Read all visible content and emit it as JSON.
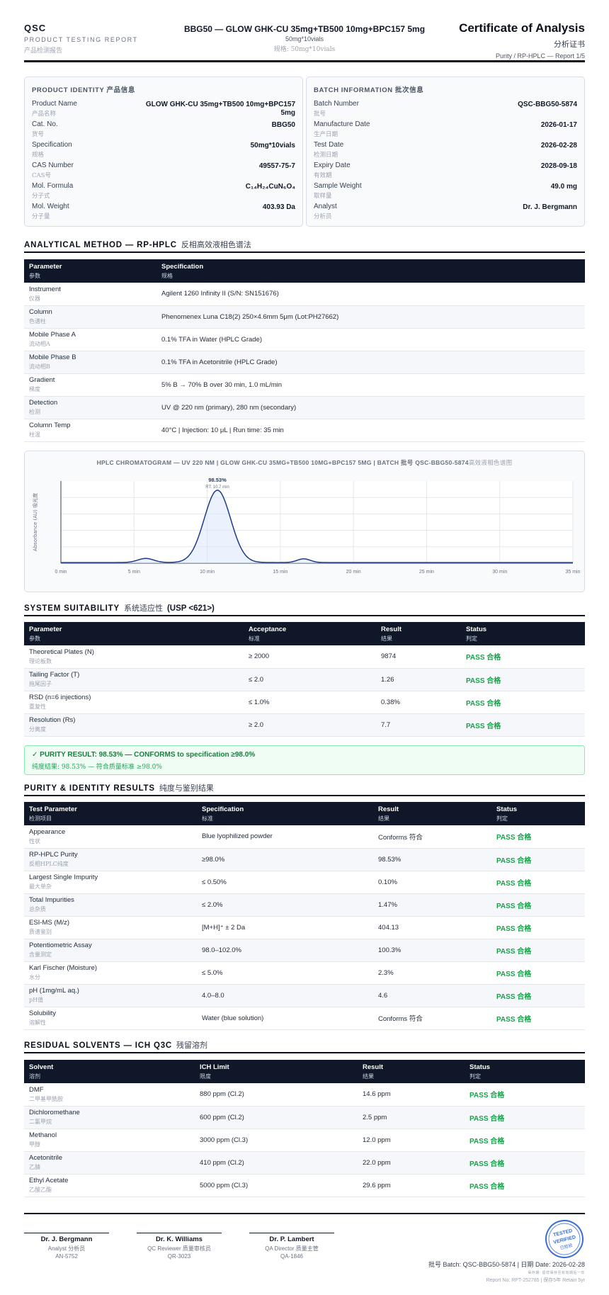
{
  "header": {
    "brand": "QSC",
    "brand_sub": "PRODUCT TESTING REPORT",
    "brand_sub_cn": "产品检测报告",
    "title": "BBG50 — GLOW GHK-CU 35mg+TB500 10mg+BPC157 5mg",
    "spec": "50mg*10vials",
    "spec_cn": "规格: 50mg*10vials",
    "coa": "Certificate of Analysis",
    "coa_cn": "分析证书",
    "coa_sub": "Purity / RP-HPLC — Report 1/5"
  },
  "product_identity": {
    "heading": "PRODUCT IDENTITY 产品信息",
    "items": [
      {
        "label": "Product Name",
        "label_cn": "产品名称",
        "value": "GLOW GHK-CU 35mg+TB500 10mg+BPC157 5mg"
      },
      {
        "label": "Cat. No.",
        "label_cn": "货号",
        "value": "BBG50"
      },
      {
        "label": "Specification",
        "label_cn": "规格",
        "value": "50mg*10vials"
      },
      {
        "label": "CAS Number",
        "label_cn": "CAS号",
        "value": "49557-75-7"
      },
      {
        "label": "Mol. Formula",
        "label_cn": "分子式",
        "value": "C₁₄H₂₄CuN₆O₄"
      },
      {
        "label": "Mol. Weight",
        "label_cn": "分子量",
        "value": "403.93 Da"
      }
    ]
  },
  "batch_info": {
    "heading": "BATCH INFORMATION 批次信息",
    "items": [
      {
        "label": "Batch Number",
        "label_cn": "批号",
        "value": "QSC-BBG50-5874"
      },
      {
        "label": "Manufacture Date",
        "label_cn": "生产日期",
        "value": "2026-01-17"
      },
      {
        "label": "Test Date",
        "label_cn": "检测日期",
        "value": "2026-02-28"
      },
      {
        "label": "Expiry Date",
        "label_cn": "有效期",
        "value": "2028-09-18"
      },
      {
        "label": "Sample Weight",
        "label_cn": "取样量",
        "value": "49.0 mg"
      },
      {
        "label": "Analyst",
        "label_cn": "分析员",
        "value": "Dr. J. Bergmann"
      }
    ]
  },
  "method": {
    "title": "ANALYTICAL METHOD — RP-HPLC",
    "title_cn": "反相高效液相色谱法",
    "headers": [
      {
        "en": "Parameter",
        "cn": "参数"
      },
      {
        "en": "Specification",
        "cn": "规格"
      }
    ],
    "rows": [
      {
        "param": "Instrument",
        "param_cn": "仪器",
        "spec": "Agilent 1260 Infinity II (S/N: SN151676)"
      },
      {
        "param": "Column",
        "param_cn": "色谱柱",
        "spec": "Phenomenex Luna C18(2) 250×4.6mm 5μm (Lot:PH27662)"
      },
      {
        "param": "Mobile Phase A",
        "param_cn": "流动相A",
        "spec": "0.1% TFA in Water (HPLC Grade)"
      },
      {
        "param": "Mobile Phase B",
        "param_cn": "流动相B",
        "spec": "0.1% TFA in Acetonitrile (HPLC Grade)"
      },
      {
        "param": "Gradient",
        "param_cn": "梯度",
        "spec": "5% B → 70% B over 30 min, 1.0 mL/min"
      },
      {
        "param": "Detection",
        "param_cn": "检测",
        "spec": "UV @ 220 nm (primary), 280 nm (secondary)"
      },
      {
        "param": "Column Temp",
        "param_cn": "柱温",
        "spec": "40°C | Injection: 10 μL | Run time: 35 min"
      }
    ]
  },
  "chart_data": {
    "type": "line",
    "title": "HPLC CHROMATOGRAM — UV 220 NM | GLOW GHK-CU 35MG+TB500 10MG+BPC157 5MG | BATCH 批号 QSC-BBG50-5874",
    "title_cn": "高效液相色谱图",
    "ylabel": "Absorbance (AU) 吸光度",
    "xlabel": "",
    "x_ticks": [
      "0 min",
      "5 min",
      "10 min",
      "15 min",
      "20 min",
      "25 min",
      "30 min",
      "35 min"
    ],
    "xlim": [
      0,
      35
    ],
    "ylim": [
      0,
      1
    ],
    "grid": true,
    "peaks": [
      {
        "rt": 5.8,
        "height": 0.05,
        "width": 0.55
      },
      {
        "rt": 10.7,
        "height": 0.88,
        "width": 0.9
      },
      {
        "rt": 16.6,
        "height": 0.045,
        "width": 0.45
      }
    ],
    "annotation": {
      "label": "98.53%",
      "sublabel": "RT: 10.7 min",
      "x": 10.7
    }
  },
  "suitability": {
    "title": "SYSTEM SUITABILITY",
    "title_cn": "系统适应性",
    "title_usp": "(USP <621>)",
    "headers": [
      {
        "en": "Parameter",
        "cn": "参数"
      },
      {
        "en": "Acceptance",
        "cn": "标准"
      },
      {
        "en": "Result",
        "cn": "结果"
      },
      {
        "en": "Status",
        "cn": "判定"
      }
    ],
    "rows": [
      {
        "param": "Theoretical Plates (N)",
        "param_cn": "理论板数",
        "accept": "≥ 2000",
        "result": "9874",
        "status": "PASS 合格"
      },
      {
        "param": "Tailing Factor (T)",
        "param_cn": "拖尾因子",
        "accept": "≤ 2.0",
        "result": "1.26",
        "status": "PASS 合格"
      },
      {
        "param": "RSD (n=6 injections)",
        "param_cn": "重复性",
        "accept": "≤ 1.0%",
        "result": "0.38%",
        "status": "PASS 合格"
      },
      {
        "param": "Resolution (Rs)",
        "param_cn": "分离度",
        "accept": "≥ 2.0",
        "result": "7.7",
        "status": "PASS 合格"
      }
    ]
  },
  "banner": {
    "main": "✓ PURITY RESULT: 98.53% — CONFORMS to specification ≥98.0%",
    "cn": "纯度结果: 98.53% — 符合质量标准 ≥98.0%"
  },
  "purity": {
    "title": "PURITY & IDENTITY RESULTS",
    "title_cn": "纯度与鉴别结果",
    "headers": [
      {
        "en": "Test Parameter",
        "cn": "检测项目"
      },
      {
        "en": "Specification",
        "cn": "标准"
      },
      {
        "en": "Result",
        "cn": "结果"
      },
      {
        "en": "Status",
        "cn": "判定"
      }
    ],
    "rows": [
      {
        "param": "Appearance",
        "param_cn": "性状",
        "spec": "Blue lyophilized powder",
        "result": "Conforms 符合",
        "status": "PASS 合格"
      },
      {
        "param": "RP-HPLC Purity",
        "param_cn": "反相HPLC纯度",
        "spec": "≥98.0%",
        "result": "98.53%",
        "status": "PASS 合格"
      },
      {
        "param": "Largest Single Impurity",
        "param_cn": "最大单杂",
        "spec": "≤ 0.50%",
        "result": "0.10%",
        "status": "PASS 合格"
      },
      {
        "param": "Total Impurities",
        "param_cn": "总杂质",
        "spec": "≤ 2.0%",
        "result": "1.47%",
        "status": "PASS 合格"
      },
      {
        "param": "ESI-MS (M/z)",
        "param_cn": "质谱鉴别",
        "spec": "[M+H]⁺ ± 2 Da",
        "result": "404.13",
        "status": "PASS 合格"
      },
      {
        "param": "Potentiometric Assay",
        "param_cn": "含量测定",
        "spec": "98.0–102.0%",
        "result": "100.3%",
        "status": "PASS 合格"
      },
      {
        "param": "Karl Fischer (Moisture)",
        "param_cn": "水分",
        "spec": "≤ 5.0%",
        "result": "2.3%",
        "status": "PASS 合格"
      },
      {
        "param": "pH (1mg/mL aq.)",
        "param_cn": "pH值",
        "spec": "4.0–8.0",
        "result": "4.6",
        "status": "PASS 合格"
      },
      {
        "param": "Solubility",
        "param_cn": "溶解性",
        "spec": "Water (blue solution)",
        "result": "Conforms 符合",
        "status": "PASS 合格"
      }
    ]
  },
  "solvents": {
    "title": "RESIDUAL SOLVENTS — ICH Q3C",
    "title_cn": "残留溶剂",
    "headers": [
      {
        "en": "Solvent",
        "cn": "溶剂"
      },
      {
        "en": "ICH Limit",
        "cn": "限度"
      },
      {
        "en": "Result",
        "cn": "结果"
      },
      {
        "en": "Status",
        "cn": "判定"
      }
    ],
    "rows": [
      {
        "name": "DMF",
        "name_cn": "二甲基甲酰胺",
        "limit": "880 ppm (Cl.2)",
        "result": "14.6 ppm",
        "status": "PASS 合格"
      },
      {
        "name": "Dichloromethane",
        "name_cn": "二氯甲烷",
        "limit": "600 ppm (Cl.2)",
        "result": "2.5 ppm",
        "status": "PASS 合格"
      },
      {
        "name": "Methanol",
        "name_cn": "甲醇",
        "limit": "3000 ppm (Cl.3)",
        "result": "12.0 ppm",
        "status": "PASS 合格"
      },
      {
        "name": "Acetonitrile",
        "name_cn": "乙腈",
        "limit": "410 ppm (Cl.2)",
        "result": "22.0 ppm",
        "status": "PASS 合格"
      },
      {
        "name": "Ethyl Acetate",
        "name_cn": "乙酸乙酯",
        "limit": "5000 ppm (Cl.3)",
        "result": "29.6 ppm",
        "status": "PASS 合格"
      }
    ]
  },
  "signatures": [
    {
      "name": "Dr. J. Bergmann",
      "role": "Analyst 分析员",
      "id": "AN-5752"
    },
    {
      "name": "Dr. K. Williams",
      "role": "QC Reviewer 质量审核员",
      "id": "QR-3023"
    },
    {
      "name": "Dr. P. Lambert",
      "role": "QA Director 质量主管",
      "id": "QA-1846"
    }
  ],
  "stamp": {
    "line1": "TESTED",
    "line2": "VERIFIED",
    "line3": "已检验"
  },
  "footer": {
    "batch": "批号 Batch: QSC-BBG50-5874 | 日期 Date: 2026-02-28",
    "retain": "保存期: 留样保存至有效期后一年",
    "report": "Report No: RPT-252785 | 保存5年 Retain 5yr"
  },
  "colors": {
    "navy": "#0f1729",
    "pass": "#16a34a",
    "chart_line": "#1e3a8a"
  }
}
